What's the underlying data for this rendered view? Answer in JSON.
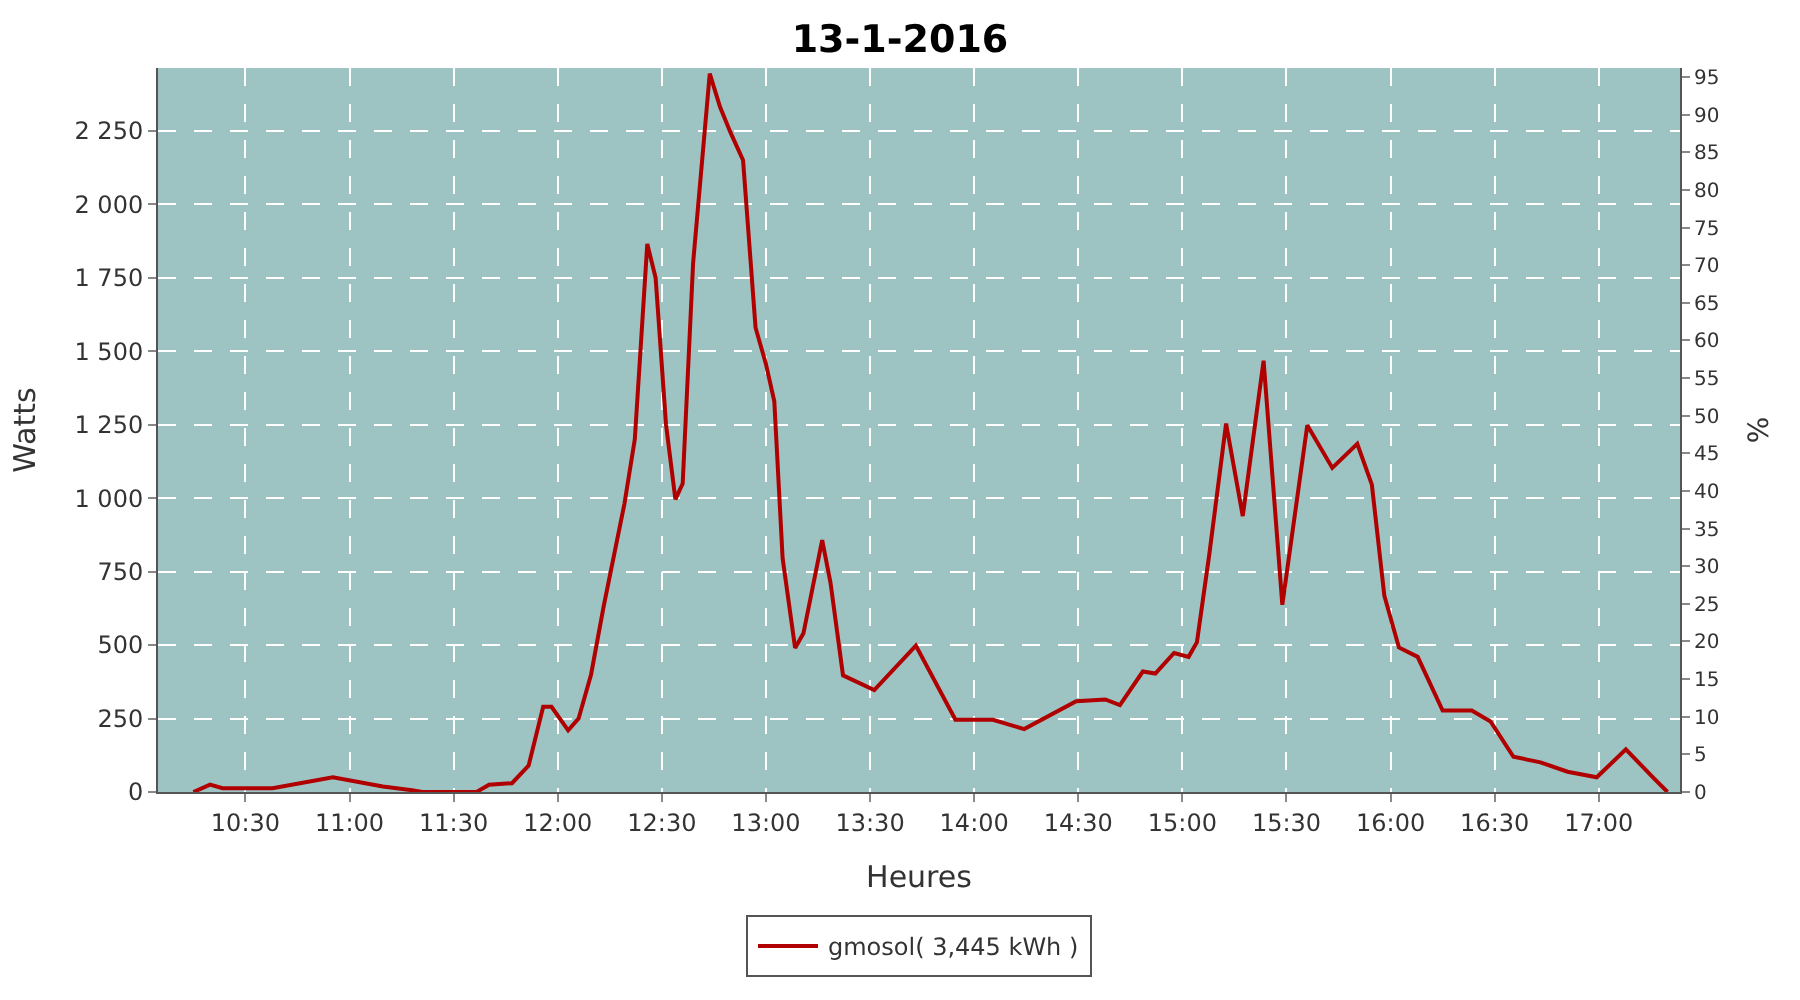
{
  "chart_data": {
    "type": "line",
    "title": "13-1-2016",
    "xlabel": "Heures",
    "ylabel": "Watts",
    "y2label": "%",
    "x": [
      10.25,
      10.33,
      10.39,
      10.63,
      10.92,
      11.16,
      11.3,
      11.35,
      11.61,
      11.67,
      11.78,
      11.86,
      11.93,
      11.97,
      12.05,
      12.1,
      12.16,
      12.22,
      12.32,
      12.37,
      12.43,
      12.47,
      12.52,
      12.565,
      12.6,
      12.65,
      12.73,
      12.78,
      12.83,
      12.89,
      12.95,
      13.0,
      13.04,
      13.08,
      13.14,
      13.18,
      13.27,
      13.31,
      13.37,
      13.52,
      13.72,
      13.91,
      14.09,
      14.24,
      14.49,
      14.63,
      14.7,
      14.81,
      14.87,
      14.96,
      15.03,
      15.07,
      15.13,
      15.21,
      15.29,
      15.39,
      15.48,
      15.6,
      15.72,
      15.84,
      15.91,
      15.97,
      16.04,
      16.13,
      16.25,
      16.39,
      16.48,
      16.59,
      16.72,
      16.85,
      16.99,
      17.13,
      17.26,
      17.33
    ],
    "series": [
      {
        "name": "gmosol( 3,445 kWh )",
        "color": "#b00000",
        "values": [
          0,
          25,
          13,
          13,
          50,
          19,
          6,
          0,
          0,
          25,
          30,
          90,
          290,
          290,
          210,
          250,
          400,
          630,
          980,
          1200,
          1865,
          1750,
          1250,
          996,
          1050,
          1800,
          2445,
          2330,
          2244,
          2150,
          1580,
          1456,
          1330,
          795,
          490,
          540,
          857,
          712,
          397,
          347,
          498,
          246,
          246,
          214,
          309,
          315,
          296,
          410,
          403,
          473,
          460,
          510,
          813,
          1254,
          939,
          1468,
          637,
          1248,
          1103,
          1185,
          1046,
          668,
          492,
          460,
          277,
          277,
          240,
          120,
          101,
          69,
          50,
          145,
          50,
          0
        ]
      }
    ],
    "xlim": [
      10.08,
      17.39
    ],
    "xticks": [
      {
        "value": 10.5,
        "label": "10:30"
      },
      {
        "value": 11,
        "label": "11:00"
      },
      {
        "value": 11.5,
        "label": "11:30"
      },
      {
        "value": 12,
        "label": "12:00"
      },
      {
        "value": 12.5,
        "label": "12:30"
      },
      {
        "value": 13,
        "label": "13:00"
      },
      {
        "value": 13.5,
        "label": "13:30"
      },
      {
        "value": 14,
        "label": "14:00"
      },
      {
        "value": 14.5,
        "label": "14:30"
      },
      {
        "value": 15,
        "label": "15:00"
      },
      {
        "value": 15.5,
        "label": "15:30"
      },
      {
        "value": 16,
        "label": "16:00"
      },
      {
        "value": 16.5,
        "label": "16:30"
      },
      {
        "value": 17,
        "label": "17:00"
      }
    ],
    "ylim": [
      0,
      2464
    ],
    "yticks": [
      0,
      250,
      500,
      750,
      {
        "value": 1000,
        "label": "1 000"
      },
      {
        "value": 1250,
        "label": "1 250"
      },
      {
        "value": 1500,
        "label": "1 500"
      },
      {
        "value": 1750,
        "label": "1 750"
      },
      {
        "value": 2000,
        "label": "2 000"
      },
      {
        "value": 2250,
        "label": "2 250"
      }
    ],
    "y2lim": [
      0,
      96.2
    ],
    "y2ticks": [
      0,
      5,
      10,
      15,
      20,
      25,
      30,
      35,
      40,
      45,
      50,
      55,
      60,
      65,
      70,
      75,
      80,
      85,
      90,
      95
    ],
    "grid": true,
    "legend": "bottom",
    "marker": "none",
    "line_style": "solid"
  }
}
